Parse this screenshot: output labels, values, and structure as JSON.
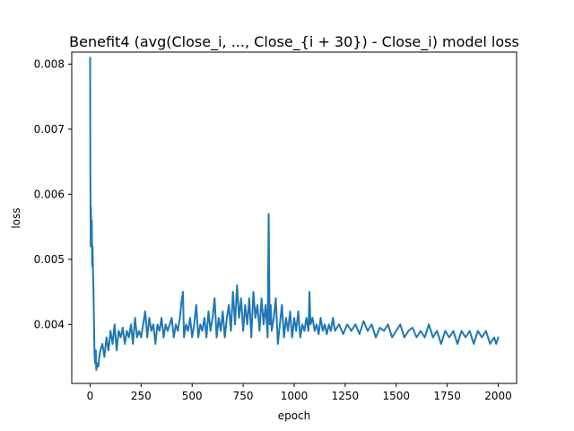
{
  "chart_data": {
    "type": "line",
    "title": "Benefit4 (avg(Close_i, ..., Close_{i + 30}) - Close_i) model loss",
    "xlabel": "epoch",
    "ylabel": "loss",
    "xlim": [
      -90,
      2090
    ],
    "ylim": [
      0.003093,
      0.008185
    ],
    "x_ticks": [
      0,
      250,
      500,
      750,
      1000,
      1250,
      1500,
      1750,
      2000
    ],
    "y_ticks": [
      0.004,
      0.005,
      0.006,
      0.007,
      0.008
    ],
    "x_tick_labels": [
      "0",
      "250",
      "500",
      "750",
      "1000",
      "1250",
      "1500",
      "1750",
      "2000"
    ],
    "y_tick_labels": [
      "0.004",
      "0.005",
      "0.006",
      "0.007",
      "0.008"
    ],
    "grid": false,
    "legend": "none",
    "series": [
      {
        "color": "#1f77b4",
        "x": [
          0,
          1,
          3,
          4,
          6,
          8,
          10,
          12,
          14,
          16,
          18,
          20,
          22,
          25,
          28,
          30,
          35,
          40,
          45,
          50,
          60,
          70,
          80,
          90,
          100,
          110,
          120,
          130,
          140,
          150,
          160,
          170,
          180,
          190,
          200,
          210,
          220,
          230,
          240,
          250,
          260,
          270,
          280,
          290,
          300,
          310,
          320,
          330,
          340,
          350,
          360,
          370,
          380,
          390,
          400,
          410,
          420,
          430,
          440,
          450,
          455,
          460,
          470,
          480,
          490,
          500,
          510,
          520,
          530,
          540,
          550,
          560,
          570,
          580,
          590,
          600,
          610,
          620,
          630,
          640,
          650,
          660,
          670,
          680,
          690,
          700,
          710,
          720,
          730,
          740,
          750,
          760,
          770,
          780,
          790,
          800,
          810,
          820,
          830,
          840,
          850,
          860,
          870,
          875,
          880,
          885,
          890,
          900,
          910,
          920,
          930,
          940,
          950,
          960,
          970,
          980,
          990,
          1000,
          1010,
          1020,
          1030,
          1040,
          1050,
          1060,
          1070,
          1075,
          1080,
          1090,
          1100,
          1110,
          1120,
          1130,
          1140,
          1150,
          1160,
          1170,
          1180,
          1190,
          1200,
          1220,
          1240,
          1260,
          1280,
          1300,
          1320,
          1340,
          1360,
          1380,
          1400,
          1420,
          1440,
          1460,
          1480,
          1500,
          1520,
          1540,
          1560,
          1580,
          1600,
          1620,
          1640,
          1660,
          1680,
          1700,
          1720,
          1740,
          1760,
          1780,
          1800,
          1820,
          1840,
          1860,
          1880,
          1900,
          1920,
          1940,
          1960,
          1980,
          1990,
          2000
        ],
        "y": [
          0.0081,
          0.0065,
          0.0052,
          0.0058,
          0.0053,
          0.0056,
          0.0049,
          0.0052,
          0.0048,
          0.0046,
          0.0042,
          0.0038,
          0.0035,
          0.0034,
          0.0036,
          0.0033,
          0.0034,
          0.00335,
          0.0035,
          0.0036,
          0.0037,
          0.0035,
          0.0038,
          0.0036,
          0.0039,
          0.0037,
          0.004,
          0.0036,
          0.0039,
          0.0038,
          0.00395,
          0.0037,
          0.0039,
          0.0038,
          0.004,
          0.0037,
          0.0041,
          0.0038,
          0.0039,
          0.0038,
          0.004,
          0.0042,
          0.0038,
          0.0041,
          0.0039,
          0.004,
          0.0037,
          0.004,
          0.0039,
          0.0041,
          0.0038,
          0.004,
          0.0039,
          0.004,
          0.0041,
          0.0038,
          0.004,
          0.0039,
          0.0041,
          0.0044,
          0.0045,
          0.0038,
          0.004,
          0.0039,
          0.0041,
          0.0038,
          0.004,
          0.0043,
          0.0038,
          0.004,
          0.0039,
          0.0041,
          0.0038,
          0.0042,
          0.0039,
          0.0041,
          0.0044,
          0.0038,
          0.0041,
          0.0039,
          0.0042,
          0.0038,
          0.0041,
          0.0043,
          0.0039,
          0.0045,
          0.004,
          0.0046,
          0.0041,
          0.0044,
          0.0039,
          0.0043,
          0.004,
          0.0044,
          0.0038,
          0.0045,
          0.0041,
          0.0043,
          0.0039,
          0.0044,
          0.004,
          0.0043,
          0.0038,
          0.0057,
          0.004,
          0.0043,
          0.0039,
          0.0041,
          0.0044,
          0.0037,
          0.004,
          0.0043,
          0.0038,
          0.0041,
          0.0039,
          0.0042,
          0.0038,
          0.0041,
          0.0039,
          0.0042,
          0.0038,
          0.004,
          0.0039,
          0.0041,
          0.0039,
          0.0045,
          0.004,
          0.0041,
          0.0039,
          0.004,
          0.00385,
          0.0041,
          0.0039,
          0.004,
          0.00385,
          0.004,
          0.0039,
          0.0041,
          0.0039,
          0.004,
          0.00385,
          0.004,
          0.0039,
          0.004,
          0.00385,
          0.00405,
          0.0039,
          0.004,
          0.0038,
          0.00395,
          0.0039,
          0.004,
          0.0038,
          0.0039,
          0.004,
          0.0038,
          0.0039,
          0.00395,
          0.0038,
          0.0039,
          0.0038,
          0.004,
          0.0038,
          0.0039,
          0.0037,
          0.0039,
          0.0038,
          0.0039,
          0.0037,
          0.0039,
          0.0038,
          0.0039,
          0.0037,
          0.0039,
          0.0038,
          0.0039,
          0.0037,
          0.0038,
          0.0037,
          0.0038
        ]
      }
    ]
  }
}
